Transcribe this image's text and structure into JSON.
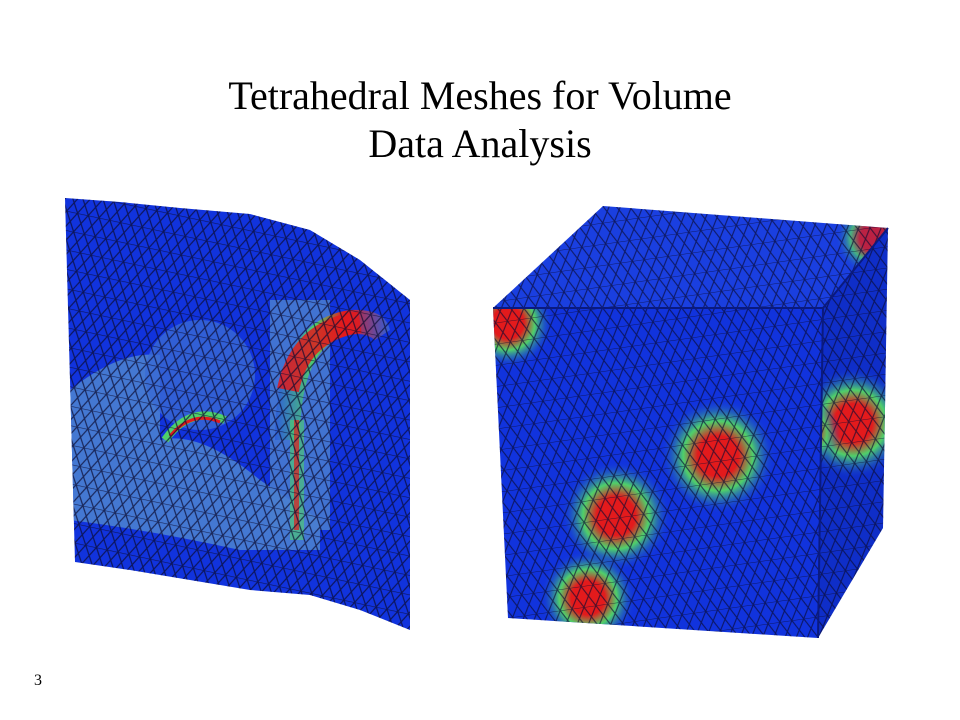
{
  "slide": {
    "title_line1": "Tetrahedral Meshes for Volume",
    "title_line2": "Data Analysis",
    "slide_number": "3"
  },
  "figures": {
    "left_image": {
      "subject": "cut-away tetrahedral mesh volume with red/green scalar band"
    },
    "right_image": {
      "subject": "cube tetrahedral mesh with red hot-spot blobs on faces"
    }
  },
  "colors": {
    "mesh_blue": "#1133dd",
    "mesh_light_blue": "#4a7fd0",
    "hot_red": "#e31a1c",
    "mid_green": "#4fd06a",
    "mesh_line": "#0a0a30"
  }
}
